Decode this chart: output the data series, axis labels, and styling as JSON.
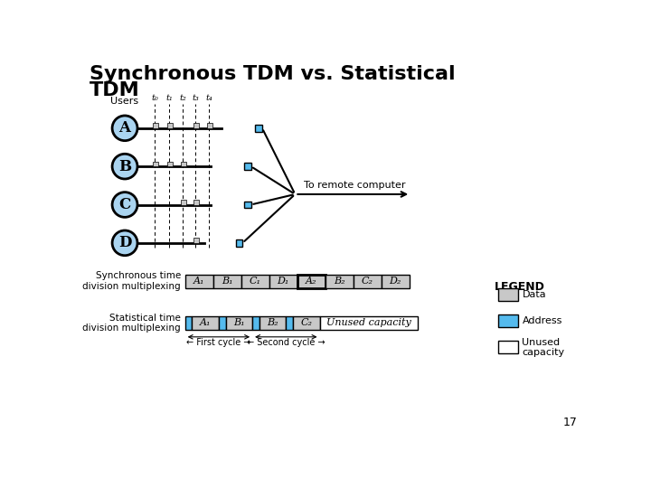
{
  "title_line1": "Synchronous TDM vs. Statistical",
  "title_line2": "TDM",
  "title_fontsize": 16,
  "title_fontweight": "bold",
  "bg_color": "#ffffff",
  "circle_color": "#aad4f0",
  "circle_edge": "#000000",
  "circle_labels": [
    "A",
    "B",
    "C",
    "D"
  ],
  "sync_label": "Synchronous time\ndivision multiplexing",
  "stat_label": "Statistical time\ndivision multiplexing",
  "sync_slots": [
    "A₁",
    "B₁",
    "C₁",
    "D₁",
    "A₂",
    "B₂",
    "C₂",
    "D₂"
  ],
  "sync_highlighted_idx": 4,
  "stat_slots": [
    "A₁",
    "B₁",
    "B₂",
    "C₂"
  ],
  "stat_unused_label": "Unused capacity",
  "legend_title": "LEGEND",
  "legend_items": [
    {
      "label": "Data",
      "color": "#c8c8c8"
    },
    {
      "label": "Address",
      "color": "#55bbee"
    },
    {
      "label": "Unused\ncapacity",
      "color": "#ffffff"
    }
  ],
  "time_labels": [
    "t₀",
    "t₁",
    "t₂",
    "t₃",
    "t₄"
  ],
  "users_label": "Users",
  "to_remote_label": "To remote computer",
  "first_cycle_label": "← First cycle →",
  "second_cycle_label": "← Second cycle →",
  "page_number": "17",
  "address_color": "#55bbee",
  "data_color": "#c8c8c8"
}
